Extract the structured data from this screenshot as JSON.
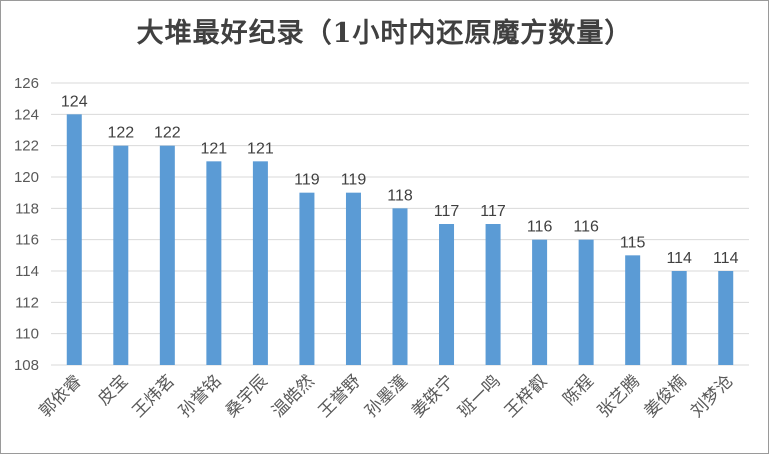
{
  "chart_data": {
    "type": "bar",
    "title": "大堆最好纪录（1小时内还原魔方数量）",
    "xlabel": "",
    "ylabel": "",
    "categories": [
      "郭依睿",
      "皮宝",
      "王炜茗",
      "孙誉铭",
      "桑宇辰",
      "温皓然",
      "王誉野",
      "孙墨潼",
      "姜轶宁",
      "班一鸣",
      "王梓叡",
      "陈程",
      "张艺腾",
      "姜俊楠",
      "刘梦沧"
    ],
    "values": [
      124,
      122,
      122,
      121,
      121,
      119,
      119,
      118,
      117,
      117,
      116,
      116,
      115,
      114,
      114
    ],
    "ylim": [
      108,
      126
    ],
    "yticks": [
      108,
      110,
      112,
      114,
      116,
      118,
      120,
      122,
      124,
      126
    ],
    "grid": true,
    "legend": "none",
    "bar_color": "#5b9bd5",
    "grid_color": "#d9d9d9"
  }
}
